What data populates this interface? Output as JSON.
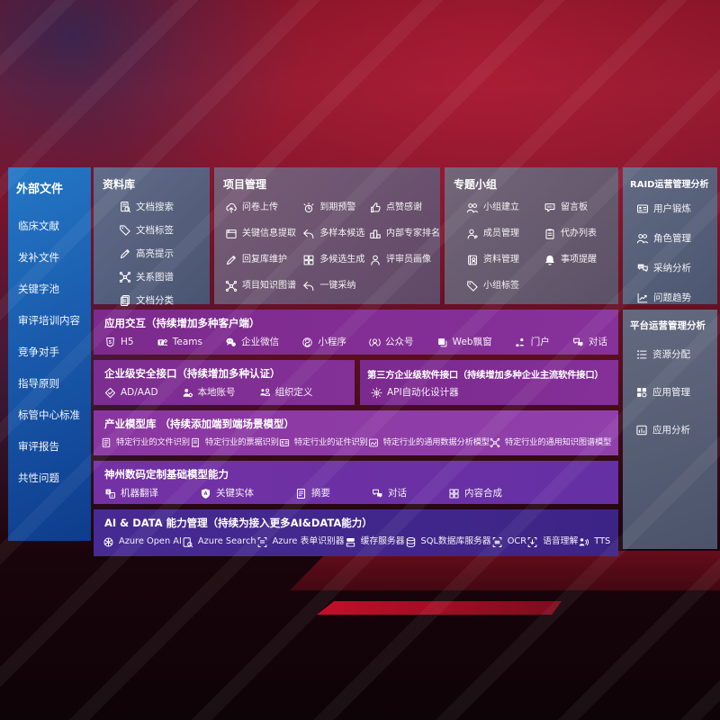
{
  "colors": {
    "bg_red": "#8a1a2e",
    "sidebar_blue": "#1a5bad",
    "panel_slate": "#5a6880",
    "purple_primary": "#7c2a8c",
    "purple_deep": "#3c2485"
  },
  "sidebar": {
    "title": "外部文件",
    "items": [
      "临床文献",
      "发补文件",
      "关键字池",
      "审评培训内容",
      "竞争对手",
      "指导原则",
      "标管中心标准",
      "审评报告",
      "共性问题"
    ]
  },
  "library": {
    "title": "资料库",
    "items": [
      {
        "icon": "doc-search",
        "label": "文档搜索"
      },
      {
        "icon": "tag",
        "label": "文档标签"
      },
      {
        "icon": "pen",
        "label": "高亮提示"
      },
      {
        "icon": "graph",
        "label": "关系图谱"
      },
      {
        "icon": "docs",
        "label": "文档分类"
      }
    ]
  },
  "project": {
    "title": "项目管理",
    "columns": [
      [
        {
          "icon": "cloud-up",
          "label": "问卷上传"
        },
        {
          "icon": "browser",
          "label": "关键信息提取"
        },
        {
          "icon": "pen",
          "label": "回复库维护"
        },
        {
          "icon": "graph",
          "label": "项目知识图谱"
        }
      ],
      [
        {
          "icon": "alarm",
          "label": "到期预警"
        },
        {
          "icon": "reply",
          "label": "多样本候选"
        },
        {
          "icon": "puzzle",
          "label": "多候选生成"
        },
        {
          "icon": "reply",
          "label": "一键采纳"
        }
      ],
      [
        {
          "icon": "thumb",
          "label": "点赞感谢"
        },
        {
          "icon": "podium",
          "label": "内部专家排名"
        },
        {
          "icon": "person",
          "label": "评审员画像"
        }
      ]
    ]
  },
  "groups": {
    "title": "专题小组",
    "columns": [
      [
        {
          "icon": "people",
          "label": "小组建立"
        },
        {
          "icon": "person-add",
          "label": "成员管理"
        },
        {
          "icon": "album",
          "label": "资料管理"
        },
        {
          "icon": "tag",
          "label": "小组标签"
        }
      ],
      [
        {
          "icon": "bbs",
          "label": "留言板"
        },
        {
          "icon": "clipboard",
          "label": "代办列表"
        },
        {
          "icon": "bell",
          "label": "事项提醒"
        }
      ]
    ]
  },
  "raid": {
    "title": "RAID运营管理分析",
    "items": [
      {
        "icon": "id-card",
        "label": "用户锻炼"
      },
      {
        "icon": "people",
        "label": "角色管理"
      },
      {
        "icon": "qa-chat",
        "label": "采纳分析"
      },
      {
        "icon": "chart",
        "label": "问题趋势"
      }
    ]
  },
  "platform": {
    "title": "平台运营管理分析",
    "items": [
      {
        "icon": "list",
        "label": "资源分配"
      },
      {
        "icon": "grid",
        "label": "应用管理"
      },
      {
        "icon": "app-chart",
        "label": "应用分析"
      }
    ]
  },
  "rows": {
    "interaction": {
      "title": "应用交互（持续增加多种客户端）",
      "items": [
        {
          "icon": "h5",
          "label": "H5"
        },
        {
          "icon": "teams",
          "label": "Teams"
        },
        {
          "icon": "wechat-work",
          "label": "企业微信"
        },
        {
          "icon": "miniprogram",
          "label": "小程序"
        },
        {
          "icon": "official-account",
          "label": "公众号"
        },
        {
          "icon": "web-popup",
          "label": "Web飘窗"
        },
        {
          "icon": "portal",
          "label": "门户"
        },
        {
          "icon": "dialog",
          "label": "对话"
        }
      ]
    },
    "security": {
      "title": "企业级安全接口（持续增加多种认证）",
      "items": [
        {
          "icon": "shield-check",
          "label": "AD/AAD"
        },
        {
          "icon": "person-gear",
          "label": "本地账号"
        },
        {
          "icon": "org",
          "label": "组织定义"
        }
      ]
    },
    "thirdparty": {
      "title": "第三方企业级软件接口（持续增加多种企业主流软件接口）",
      "items": [
        {
          "icon": "api-gear",
          "label": "API自动化设计器"
        }
      ]
    },
    "models": {
      "title": "产业模型库 （持续添加端到端场景模型）",
      "items": [
        {
          "icon": "doc-lines",
          "label": "特定行业的文件识别"
        },
        {
          "icon": "receipt",
          "label": "特定行业的票据识别"
        },
        {
          "icon": "id-card",
          "label": "特定行业的证件识别"
        },
        {
          "icon": "data-chart",
          "label": "特定行业的通用数据分析模型"
        },
        {
          "icon": "graph",
          "label": "特定行业的通用知识图谱模型"
        }
      ]
    },
    "base": {
      "title": "神州数码定制基础模型能力",
      "items": [
        {
          "icon": "translate",
          "label": "机器翻译"
        },
        {
          "icon": "shield-a",
          "label": "关键实体"
        },
        {
          "icon": "summary",
          "label": "摘要"
        },
        {
          "icon": "dialog",
          "label": "对话"
        },
        {
          "icon": "puzzle",
          "label": "内容合成"
        }
      ]
    },
    "ai": {
      "title": "AI & DATA 能力管理（持续为接入更多AI&DATA能力）",
      "items": [
        {
          "icon": "openai",
          "label": "Azure Open AI"
        },
        {
          "icon": "search-doc",
          "label": "Azure Search"
        },
        {
          "icon": "form-scan",
          "label": "Azure 表单识别器"
        },
        {
          "icon": "server",
          "label": "缓存服务器"
        },
        {
          "icon": "database",
          "label": "SQL数据库服务器"
        },
        {
          "icon": "ocr",
          "label": "OCR"
        },
        {
          "icon": "speech",
          "label": "语音理解"
        },
        {
          "icon": "tts",
          "label": "TTS"
        }
      ]
    }
  }
}
